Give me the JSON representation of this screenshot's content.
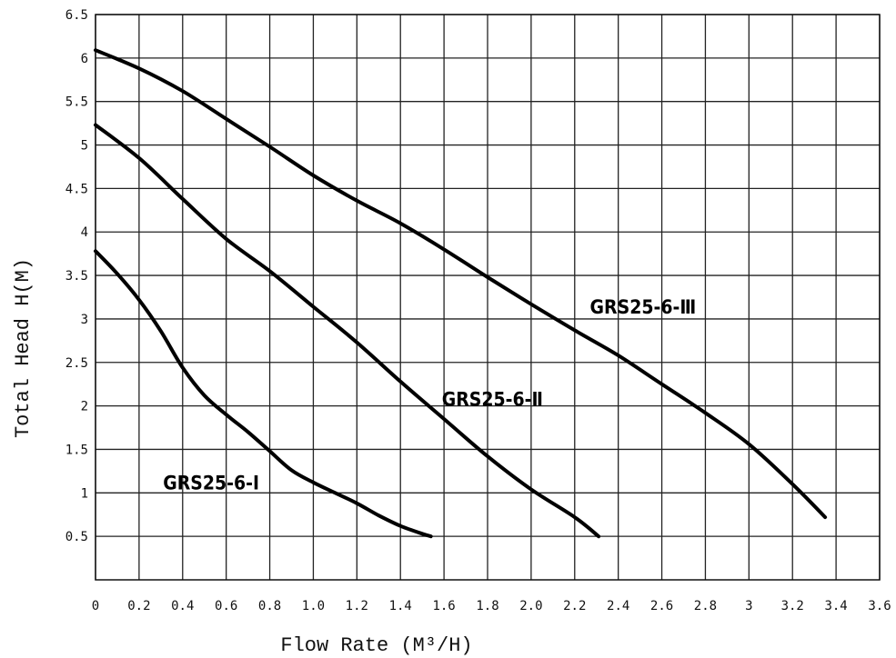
{
  "chart_data": {
    "type": "line",
    "xlabel": "Flow Rate (M³/H)",
    "ylabel": "Total Head H(M)",
    "xlim": [
      0,
      3.6
    ],
    "ylim": [
      0,
      6.5
    ],
    "x_ticks": [
      "0",
      "0.2",
      "0.4",
      "0.6",
      "0.8",
      "1.0",
      "1.2",
      "1.4",
      "1.6",
      "1.8",
      "2.0",
      "2.2",
      "2.4",
      "2.6",
      "2.8",
      "3",
      "3.2",
      "3.4",
      "3.6"
    ],
    "y_ticks": [
      "0.5",
      "1",
      "1.5",
      "2",
      "2.5",
      "3",
      "3.5",
      "4",
      "4.5",
      "5",
      "5.5",
      "6",
      "6.5"
    ],
    "grid": true,
    "legend": "none",
    "series": [
      {
        "name": "GRS25-6-Ⅰ",
        "label_at": [
          0.31,
          1.04
        ],
        "points": [
          [
            0,
            3.78
          ],
          [
            0.1,
            3.52
          ],
          [
            0.2,
            3.22
          ],
          [
            0.3,
            2.86
          ],
          [
            0.4,
            2.44
          ],
          [
            0.5,
            2.12
          ],
          [
            0.6,
            1.9
          ],
          [
            0.7,
            1.7
          ],
          [
            0.8,
            1.48
          ],
          [
            0.9,
            1.26
          ],
          [
            1.0,
            1.12
          ],
          [
            1.1,
            1.0
          ],
          [
            1.2,
            0.88
          ],
          [
            1.3,
            0.74
          ],
          [
            1.4,
            0.62
          ],
          [
            1.5,
            0.53
          ],
          [
            1.54,
            0.5
          ]
        ]
      },
      {
        "name": "GRS25-6-Ⅱ",
        "label_at": [
          1.59,
          2.0
        ],
        "points": [
          [
            0,
            5.23
          ],
          [
            0.2,
            4.85
          ],
          [
            0.4,
            4.38
          ],
          [
            0.6,
            3.92
          ],
          [
            0.8,
            3.55
          ],
          [
            1.0,
            3.14
          ],
          [
            1.2,
            2.73
          ],
          [
            1.4,
            2.28
          ],
          [
            1.6,
            1.85
          ],
          [
            1.8,
            1.42
          ],
          [
            2.0,
            1.04
          ],
          [
            2.2,
            0.72
          ],
          [
            2.31,
            0.5
          ]
        ]
      },
      {
        "name": "GRS25-6-Ⅲ",
        "label_at": [
          2.27,
          3.06
        ],
        "points": [
          [
            0,
            6.09
          ],
          [
            0.2,
            5.88
          ],
          [
            0.4,
            5.62
          ],
          [
            0.6,
            5.3
          ],
          [
            0.8,
            4.98
          ],
          [
            1.0,
            4.65
          ],
          [
            1.2,
            4.36
          ],
          [
            1.4,
            4.1
          ],
          [
            1.6,
            3.8
          ],
          [
            1.8,
            3.48
          ],
          [
            2.0,
            3.17
          ],
          [
            2.2,
            2.87
          ],
          [
            2.4,
            2.58
          ],
          [
            2.6,
            2.25
          ],
          [
            2.8,
            1.92
          ],
          [
            3.0,
            1.56
          ],
          [
            3.2,
            1.1
          ],
          [
            3.35,
            0.72
          ]
        ]
      }
    ]
  }
}
